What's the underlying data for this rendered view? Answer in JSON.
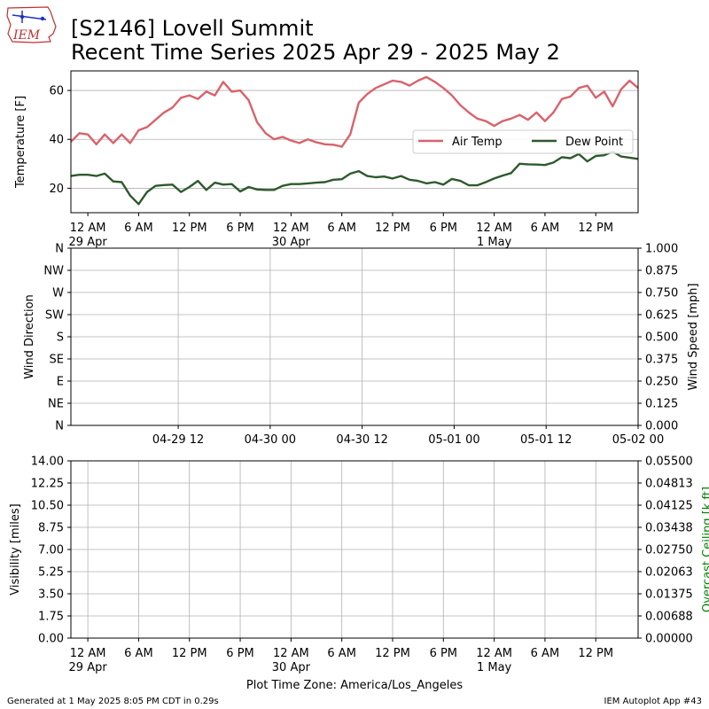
{
  "header": {
    "logo_text": "IEM",
    "title_line1": "[S2146] Lovell Summit",
    "title_line2": "Recent Time Series 2025 Apr 29 - 2025 May 2"
  },
  "footer": {
    "generated": "Generated at 1 May 2025 8:05 PM CDT in 0.29s",
    "app": "IEM Autoplot App #43",
    "xlabel": "Plot Time Zone: America/Los_Angeles"
  },
  "colors": {
    "air_temp": "#d9626b",
    "dew_point": "#2d5a2d",
    "grid": "#b0b0b0",
    "ceiling_label": "#008000"
  },
  "chart_data": [
    {
      "type": "line",
      "ylabel": "Temperature [F]",
      "ylim": [
        10,
        68
      ],
      "yticks": [
        20,
        40,
        60
      ],
      "x_unit": "hours since 2025-04-29 00:00",
      "xlim": [
        -2,
        120
      ],
      "xticks": [
        {
          "x": 0,
          "l1": "12 AM",
          "l2": "29 Apr"
        },
        {
          "x": 6,
          "l1": "6 AM",
          "l2": ""
        },
        {
          "x": 12,
          "l1": "12 PM",
          "l2": ""
        },
        {
          "x": 18,
          "l1": "6 PM",
          "l2": ""
        },
        {
          "x": 24,
          "l1": "12 AM",
          "l2": "30 Apr"
        },
        {
          "x": 30,
          "l1": "6 AM",
          "l2": ""
        },
        {
          "x": 36,
          "l1": "12 PM",
          "l2": ""
        },
        {
          "x": 42,
          "l1": "6 PM",
          "l2": ""
        },
        {
          "x": 48,
          "l1": "12 AM",
          "l2": "1 May"
        },
        {
          "x": 54,
          "l1": "6 AM",
          "l2": ""
        },
        {
          "x": 60,
          "l1": "12 PM",
          "l2": ""
        }
      ],
      "legend_position": "center-right",
      "series": [
        {
          "name": "Air Temp",
          "x": [
            -2,
            -1,
            0,
            1,
            2,
            3,
            4,
            5,
            6,
            7,
            8,
            9,
            10,
            11,
            12,
            13,
            14,
            15,
            16,
            17,
            18,
            19,
            20,
            21,
            22,
            23,
            24,
            25,
            26,
            27,
            28,
            29,
            30,
            31,
            32,
            33,
            34,
            35,
            36,
            37,
            38,
            39,
            40,
            41,
            42,
            43,
            44,
            45,
            46,
            47,
            48,
            49,
            50,
            51,
            52,
            53,
            54,
            55,
            56,
            57,
            58,
            59,
            60,
            61,
            62,
            63,
            64,
            65
          ],
          "values": [
            39,
            42.5,
            42,
            38,
            42,
            38.5,
            42,
            38.5,
            43.7,
            45,
            48,
            51,
            53,
            57,
            58,
            56.5,
            59.5,
            58,
            63.5,
            59.5,
            60,
            56,
            47,
            42.5,
            40,
            41,
            39.5,
            38.5,
            40,
            38.8,
            38,
            37.8,
            37,
            42,
            55,
            58.5,
            61,
            62.5,
            64,
            63.5,
            62,
            64,
            65.5,
            63.5,
            61,
            58,
            54,
            51,
            48.5,
            47.5,
            45.5,
            47.5,
            48.5,
            50,
            48,
            51,
            47.5,
            51,
            56.5,
            57.5,
            61,
            62,
            57,
            59.5,
            53.5,
            60.5,
            64,
            61
          ]
        },
        {
          "name": "Dew Point",
          "x": [
            -2,
            -1,
            0,
            1,
            2,
            3,
            4,
            5,
            6,
            7,
            8,
            9,
            10,
            11,
            12,
            13,
            14,
            15,
            16,
            17,
            18,
            19,
            20,
            21,
            22,
            23,
            24,
            25,
            26,
            27,
            28,
            29,
            30,
            31,
            32,
            33,
            34,
            35,
            36,
            37,
            38,
            39,
            40,
            41,
            42,
            43,
            44,
            45,
            46,
            47,
            48,
            49,
            50,
            51,
            52,
            53,
            54,
            55,
            56,
            57,
            58,
            59,
            60,
            61,
            62,
            63,
            64,
            65
          ],
          "values": [
            25,
            25.5,
            25.5,
            25,
            26,
            22.8,
            22.5,
            17,
            13.5,
            18.5,
            21,
            21.3,
            21.5,
            18.5,
            20.5,
            23,
            19.3,
            22.3,
            21.5,
            21.7,
            18.7,
            20.5,
            19.5,
            19.3,
            19.3,
            21,
            21.7,
            21.7,
            22,
            22.3,
            22.5,
            23.5,
            23.7,
            26,
            27,
            25,
            24.5,
            24.8,
            24,
            25,
            23.5,
            23,
            22,
            22.5,
            21.5,
            23.8,
            23,
            21.2,
            21.2,
            22.5,
            24,
            25.2,
            26.2,
            30,
            29.8,
            29.7,
            29.5,
            30.5,
            32.7,
            32.3,
            34,
            31,
            33.2,
            33.5,
            35,
            33,
            32.5,
            32
          ]
        }
      ]
    },
    {
      "type": "line",
      "ylabel": "Wind Direction",
      "ylabel_right": "Wind Speed [mph]",
      "yticks_left": [
        "N",
        "NE",
        "E",
        "SE",
        "S",
        "SW",
        "W",
        "NW",
        "N"
      ],
      "yticks_right": [
        "0.000",
        "0.125",
        "0.250",
        "0.375",
        "0.500",
        "0.625",
        "0.750",
        "0.875",
        "1.000"
      ],
      "xlim": [
        -2,
        120
      ],
      "xticks": [
        {
          "x": 12,
          "label": "04-29 12"
        },
        {
          "x": 24,
          "label": "04-30 00"
        },
        {
          "x": 36,
          "label": "04-30 12"
        },
        {
          "x": 48,
          "label": "05-01 00"
        },
        {
          "x": 60,
          "label": "05-01 12"
        },
        {
          "x": 72,
          "label": "05-02 00"
        }
      ],
      "series": []
    },
    {
      "type": "line",
      "ylabel": "Visibility [miles]",
      "ylabel_right": "Overcast Ceiling [k ft]",
      "yticks_left": [
        "0.00",
        "1.75",
        "3.50",
        "5.25",
        "7.00",
        "8.75",
        "10.50",
        "12.25",
        "14.00"
      ],
      "yticks_right": [
        "0.00000",
        "0.00688",
        "0.01375",
        "0.02063",
        "0.02750",
        "0.03438",
        "0.04125",
        "0.04813",
        "0.05500"
      ],
      "xticks": [
        {
          "x": 0,
          "l1": "12 AM",
          "l2": "29 Apr"
        },
        {
          "x": 6,
          "l1": "6 AM",
          "l2": ""
        },
        {
          "x": 12,
          "l1": "12 PM",
          "l2": ""
        },
        {
          "x": 18,
          "l1": "6 PM",
          "l2": ""
        },
        {
          "x": 24,
          "l1": "12 AM",
          "l2": "30 Apr"
        },
        {
          "x": 30,
          "l1": "6 AM",
          "l2": ""
        },
        {
          "x": 36,
          "l1": "12 PM",
          "l2": ""
        },
        {
          "x": 42,
          "l1": "6 PM",
          "l2": ""
        },
        {
          "x": 48,
          "l1": "12 AM",
          "l2": "1 May"
        },
        {
          "x": 54,
          "l1": "6 AM",
          "l2": ""
        },
        {
          "x": 60,
          "l1": "12 PM",
          "l2": ""
        }
      ],
      "series": []
    }
  ]
}
